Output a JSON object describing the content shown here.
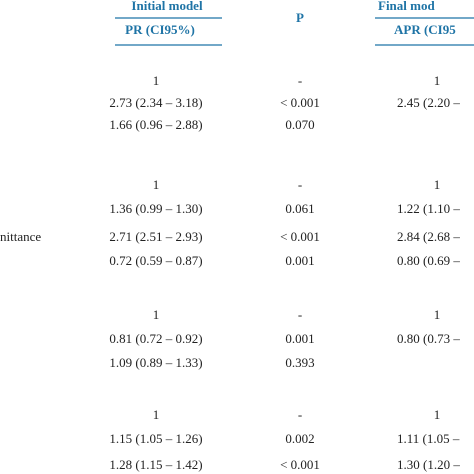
{
  "header": {
    "initial_model": "Initial model",
    "pr": "PR (CI95%)",
    "p": "P",
    "final_model": "Final mod",
    "apr": "APR (CI95"
  },
  "rows": [
    {
      "pr": "1",
      "p": "-",
      "apr": "1"
    },
    {
      "pr": "2.73 (2.34 – 3.18)",
      "p": "< 0.001",
      "apr": "2.45 (2.20 –"
    },
    {
      "pr": "1.66 (0.96 – 2.88)",
      "p": "0.070"
    },
    {
      "pr": "1",
      "p": "-",
      "apr": "1"
    },
    {
      "pr": "1.36 (0.99 – 1.30)",
      "p": "0.061",
      "apr": "1.22 (1.10 –"
    },
    {
      "label": "nittance",
      "pr": "2.71 (2.51 – 2.93)",
      "p": "< 0.001",
      "apr": "2.84 (2.68 –"
    },
    {
      "pr": "0.72 (0.59 – 0.87)",
      "p": "0.001",
      "apr": "0.80 (0.69 –"
    },
    {
      "pr": "1",
      "p": "-",
      "apr": "1"
    },
    {
      "pr": "0.81 (0.72 – 0.92)",
      "p": "0.001",
      "apr": "0.80 (0.73 –"
    },
    {
      "pr": "1.09 (0.89 – 1.33)",
      "p": "0.393"
    },
    {
      "pr": "1",
      "p": "-",
      "apr": "1"
    },
    {
      "pr": "1.15 (1.05 – 1.26)",
      "p": "0.002",
      "apr": "1.11 (1.05 –"
    },
    {
      "pr": "1.28 (1.15 – 1.42)",
      "p": "< 0.001",
      "apr": "1.30 (1.20 –"
    }
  ]
}
